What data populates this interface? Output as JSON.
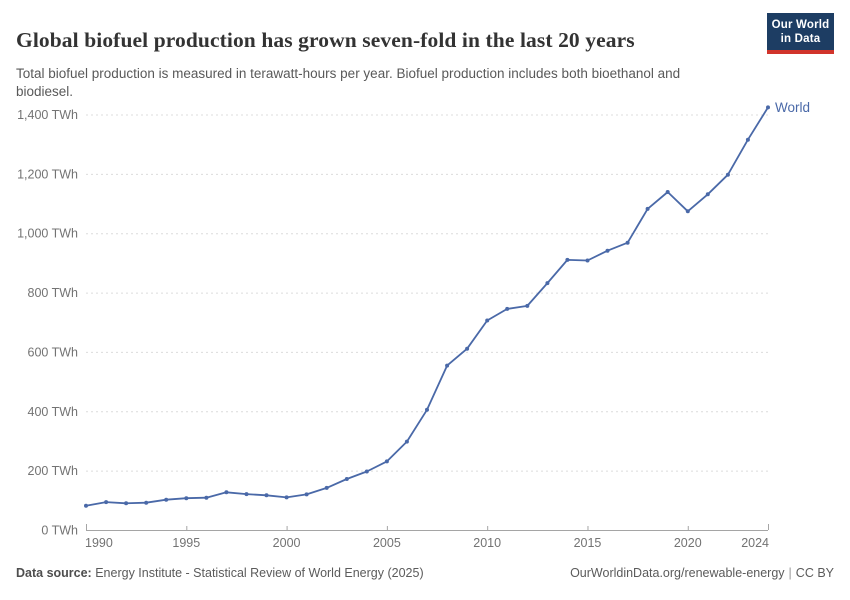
{
  "header": {
    "title": "Global biofuel production has grown seven-fold in the last 20 years",
    "subtitle": "Total biofuel production is measured in terawatt-hours per year. Biofuel production includes both bioethanol and biodiesel.",
    "logo": {
      "line1": "Our World",
      "line2": "in Data",
      "bg_color": "#1d3d63",
      "stripe_color": "#d1342b"
    }
  },
  "chart_data": {
    "type": "line",
    "title": "Global biofuel production has grown seven-fold in the last 20 years",
    "unit": "TWh",
    "x": [
      1990,
      1991,
      1992,
      1993,
      1994,
      1995,
      1996,
      1997,
      1998,
      1999,
      2000,
      2001,
      2002,
      2003,
      2004,
      2005,
      2006,
      2007,
      2008,
      2009,
      2010,
      2011,
      2012,
      2013,
      2014,
      2015,
      2016,
      2017,
      2018,
      2019,
      2020,
      2021,
      2022,
      2023,
      2024
    ],
    "series": [
      {
        "name": "World",
        "color": "#4a69a8",
        "values": [
          82,
          94,
          90,
          92,
          102,
          107,
          109,
          127,
          121,
          117,
          110,
          120,
          142,
          172,
          197,
          231,
          298,
          405,
          554,
          611,
          706,
          745,
          755,
          832,
          910,
          908,
          941,
          968,
          1082,
          1139,
          1074,
          1131,
          1197,
          1315,
          1424
        ]
      }
    ],
    "end_label": "World",
    "xlim": [
      1990,
      2024
    ],
    "ylim": [
      0,
      1400
    ],
    "yticks": [
      0,
      200,
      400,
      600,
      800,
      1000,
      1200,
      1400
    ],
    "ytick_labels": [
      "0 TWh",
      "200 TWh",
      "400 TWh",
      "600 TWh",
      "800 TWh",
      "1,000 TWh",
      "1,200 TWh",
      "1,400 TWh"
    ],
    "xticks": [
      1990,
      1995,
      2000,
      2005,
      2010,
      2015,
      2020,
      2024
    ],
    "xtick_labels": [
      "1990",
      "1995",
      "2000",
      "2005",
      "2010",
      "2015",
      "2020",
      "2024"
    ],
    "grid": "horizontal-dashed",
    "gridline_color": "#dcdcdc",
    "axis_color": "#a5a5a5",
    "tick_label_color": "#737373",
    "legend_position": "end-of-line"
  },
  "footer": {
    "source_label": "Data source:",
    "source_text": "Energy Institute - Statistical Review of World Energy (2025)",
    "link": "OurWorldinData.org/renewable-energy",
    "separator": "|",
    "license": "CC BY"
  }
}
